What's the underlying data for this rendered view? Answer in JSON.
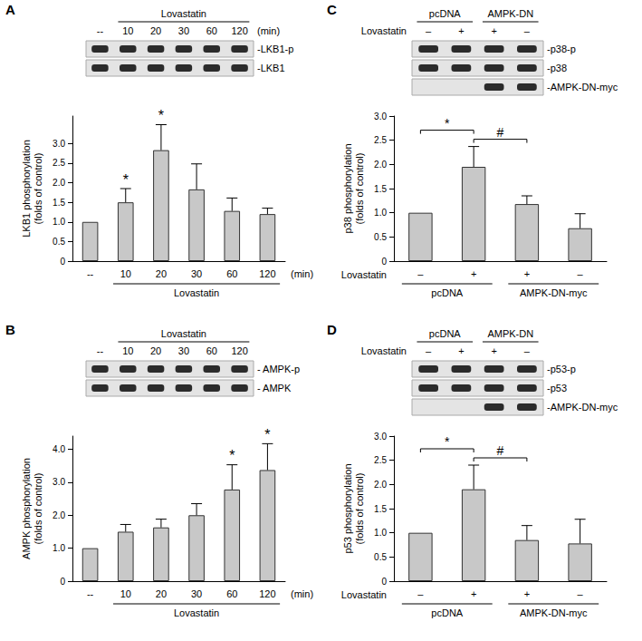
{
  "chart_data": [
    {
      "type": "bar",
      "title": "A",
      "header": {
        "groups": [
          {
            "label": "Lovastatin",
            "from": 1,
            "to": 5
          }
        ],
        "lanes": [
          "--",
          "10",
          "20",
          "30",
          "60",
          "120"
        ],
        "unit": "(min)"
      },
      "blot": [
        {
          "label": "-LKB1-p",
          "present": [
            true,
            true,
            true,
            true,
            true,
            true
          ]
        },
        {
          "label": "-LKB1",
          "present": [
            true,
            true,
            true,
            true,
            true,
            true
          ]
        }
      ],
      "categories": [
        "--",
        "10",
        "20",
        "30",
        "60",
        "120"
      ],
      "x_groups": [
        {
          "label": "Lovastatin",
          "from": 1,
          "to": 5
        }
      ],
      "x_unit": "(min)",
      "y_label": "LKB1 phosphorylation\n(folds of control)",
      "values": [
        1,
        1.5,
        2.83,
        1.83,
        1.28,
        1.2
      ],
      "errors": [
        0,
        0.35,
        0.65,
        0.65,
        0.33,
        0.15
      ],
      "significance": [
        {
          "text": "*",
          "from": 1,
          "to": 1
        },
        {
          "text": "*",
          "from": 2,
          "to": 2
        }
      ],
      "color": "#c8c8c8",
      "ylim": [
        0,
        3.7
      ],
      "yticks": [
        0,
        0.5,
        {
          "value": 1,
          "label": "1.0"
        },
        1.5,
        {
          "value": 2,
          "label": "2.0"
        },
        2.5,
        {
          "value": 3,
          "label": "3.0"
        }
      ],
      "grid": false
    },
    {
      "type": "bar",
      "title": "B",
      "header": {
        "groups": [
          {
            "label": "Lovastatin",
            "from": 1,
            "to": 5
          }
        ],
        "lanes": [
          "--",
          "10",
          "20",
          "30",
          "60",
          "120"
        ]
      },
      "blot": [
        {
          "label": "- AMPK-p",
          "present": [
            true,
            true,
            true,
            true,
            true,
            true
          ]
        },
        {
          "label": "- AMPK",
          "present": [
            true,
            true,
            true,
            true,
            true,
            true
          ]
        }
      ],
      "categories": [
        "--",
        "10",
        "20",
        "30",
        "60",
        "120"
      ],
      "x_groups": [
        {
          "label": "Lovastatin",
          "from": 1,
          "to": 5
        }
      ],
      "x_unit": "(min)",
      "y_label": "AMPK phosphorylation\n(folds of control)",
      "values": [
        1,
        1.5,
        1.63,
        2.0,
        2.78,
        3.37
      ],
      "errors": [
        0,
        0.22,
        0.25,
        0.35,
        0.75,
        0.8
      ],
      "significance": [
        {
          "text": "*",
          "from": 4,
          "to": 4
        },
        {
          "text": "*",
          "from": 5,
          "to": 5
        }
      ],
      "color": "#c8c8c8",
      "ylim": [
        0,
        4.4
      ],
      "yticks": [
        0,
        {
          "value": 1,
          "label": "1.0"
        },
        {
          "value": 2,
          "label": "2.0"
        },
        {
          "value": 3,
          "label": "3.0"
        },
        {
          "value": 4,
          "label": "4.0"
        }
      ],
      "grid": false
    },
    {
      "type": "bar",
      "title": "C",
      "header": {
        "groups": [
          {
            "label": "pcDNA",
            "from": 0,
            "to": 1
          },
          {
            "label": "AMPK-DN",
            "from": 2,
            "to": 3
          }
        ],
        "label": "Lovastatin",
        "lanes": [
          "–",
          "+",
          "+",
          "–"
        ]
      },
      "blot": [
        {
          "label": "-p38-p",
          "present": [
            true,
            true,
            true,
            true
          ]
        },
        {
          "label": "-p38",
          "present": [
            true,
            true,
            true,
            true
          ]
        },
        {
          "label": "-AMPK-DN-myc",
          "present": [
            false,
            false,
            true,
            true
          ]
        }
      ],
      "categories": [
        "–",
        "+",
        "+",
        "–"
      ],
      "x_label": "Lovastatin",
      "x_groups": [
        {
          "label": "pcDNA",
          "from": 0,
          "to": 1
        },
        {
          "label": "AMPK-DN-myc",
          "from": 2,
          "to": 3
        }
      ],
      "y_label": "p38 phosphorylation\n(folds of control)",
      "values": [
        1,
        1.95,
        1.18,
        0.68
      ],
      "errors": [
        0,
        0.42,
        0.17,
        0.3
      ],
      "significance": [
        {
          "text": "*",
          "from": 0,
          "to": 1
        },
        {
          "text": "#",
          "from": 1,
          "to": 2
        }
      ],
      "color": "#c8c8c8",
      "ylim": [
        0,
        3
      ],
      "yticks": [
        0,
        0.5,
        {
          "value": 1,
          "label": "1.0"
        },
        1.5,
        {
          "value": 2,
          "label": "2.0"
        },
        2.5,
        {
          "value": 3,
          "label": "3.0"
        }
      ],
      "grid": false
    },
    {
      "type": "bar",
      "title": "D",
      "header": {
        "groups": [
          {
            "label": "pcDNA",
            "from": 0,
            "to": 1
          },
          {
            "label": "AMPK-DN",
            "from": 2,
            "to": 3
          }
        ],
        "label": "Lovastatin",
        "lanes": [
          "–",
          "+",
          "+",
          "–"
        ]
      },
      "blot": [
        {
          "label": "-p53-p",
          "present": [
            true,
            true,
            true,
            true
          ]
        },
        {
          "label": "-p53",
          "present": [
            true,
            true,
            true,
            true
          ]
        },
        {
          "label": "-AMPK-DN-myc",
          "present": [
            false,
            false,
            true,
            true
          ]
        }
      ],
      "categories": [
        "–",
        "+",
        "+",
        "–"
      ],
      "x_label": "Lovastatin",
      "x_groups": [
        {
          "label": "pcDNA",
          "from": 0,
          "to": 1
        },
        {
          "label": "AMPK-DN-myc",
          "from": 2,
          "to": 3
        }
      ],
      "y_label": "p53 phosphorylation\n(folds of control)",
      "values": [
        1,
        1.9,
        0.85,
        0.78
      ],
      "errors": [
        0,
        0.5,
        0.3,
        0.5
      ],
      "significance": [
        {
          "text": "*",
          "from": 0,
          "to": 1
        },
        {
          "text": "#",
          "from": 1,
          "to": 2
        }
      ],
      "color": "#c8c8c8",
      "ylim": [
        0,
        3
      ],
      "yticks": [
        0,
        0.5,
        {
          "value": 1,
          "label": "1.0"
        },
        1.5,
        {
          "value": 2,
          "label": "2.0"
        },
        2.5,
        {
          "value": 3,
          "label": "3.0"
        }
      ],
      "grid": false
    }
  ]
}
